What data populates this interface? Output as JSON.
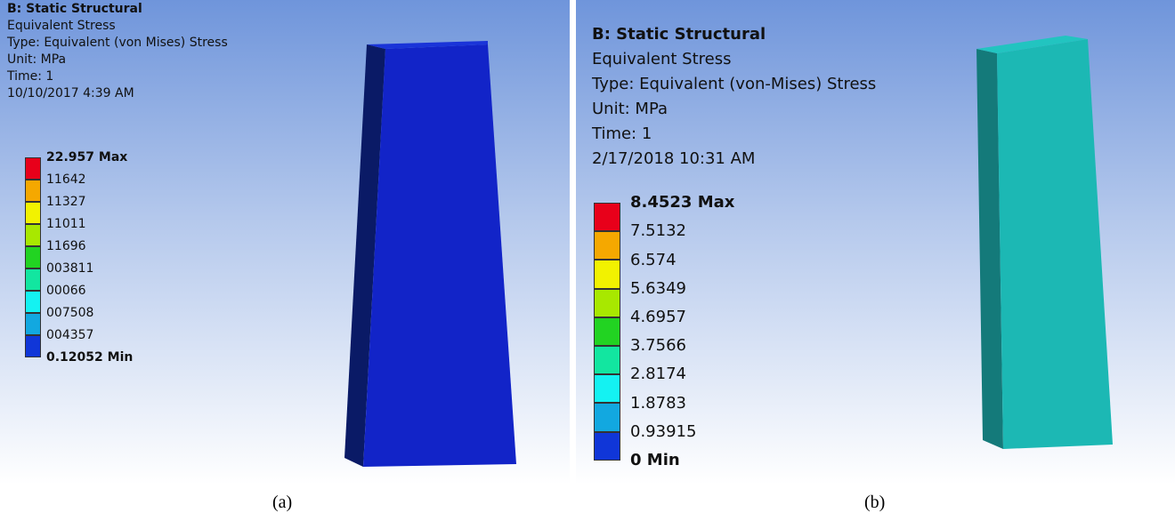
{
  "panels": [
    {
      "title": "B: Static Structural",
      "lines": [
        "Equivalent Stress",
        "Type: Equivalent (von Mises) Stress",
        "Unit: MPa",
        "Time: 1",
        "10/10/2017 4:39 AM"
      ],
      "legend": [
        "22.957 Max",
        "11642",
        "11327",
        "11011",
        "11696",
        "003811",
        "00066",
        "007508",
        "004357",
        "0.12052 Min"
      ],
      "caption": "(a)"
    },
    {
      "title": "B: Static Structural",
      "lines": [
        "Equivalent Stress",
        "Type: Equivalent (von-Mises) Stress",
        "Unit: MPa",
        "Time: 1",
        "2/17/2018 10:31 AM"
      ],
      "legend": [
        "8.4523 Max",
        "7.5132",
        "6.574",
        "5.6349",
        "4.6957",
        "3.7566",
        "2.8174",
        "1.8783",
        "0.93915",
        "0 Min"
      ],
      "caption": "(b)"
    }
  ],
  "legend_colors": [
    "#e8001a",
    "#f5a800",
    "#f2f200",
    "#a8e800",
    "#22d322",
    "#12e6a0",
    "#14f2f2",
    "#12a8e0",
    "#1036d8"
  ]
}
